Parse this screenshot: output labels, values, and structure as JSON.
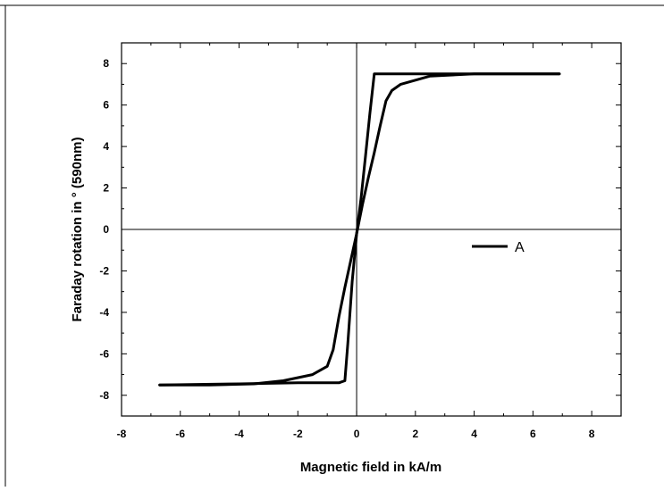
{
  "chart_data": {
    "type": "line",
    "title": "",
    "xlabel": "Magnetic field in kA/m",
    "ylabel": "Faraday rotation in ° (590nm)",
    "xlim": [
      -8,
      9
    ],
    "ylim": [
      -9,
      9
    ],
    "x_ticks": [
      "-8",
      "-6",
      "-4",
      "-2",
      "0",
      "2",
      "4",
      "6",
      "8"
    ],
    "y_ticks": [
      "-8",
      "-6",
      "-4",
      "-2",
      "0",
      "2",
      "4",
      "6",
      "8"
    ],
    "grid": false,
    "zero_lines": true,
    "legend": {
      "position": "right-center",
      "entries": [
        "A"
      ]
    },
    "series": [
      {
        "name": "A",
        "color": "#000000",
        "branches": [
          {
            "x": [
              6.9,
              4.0,
              2.5,
              1.5,
              1.2,
              1.0,
              0.8,
              0.6,
              0.4,
              0.2,
              0.0,
              -0.2,
              -0.4,
              -0.6,
              -0.8,
              -1.0,
              -1.5,
              -2.5,
              -3.5,
              -5.0,
              -6.7
            ],
            "y": [
              7.5,
              7.5,
              7.4,
              7.0,
              6.7,
              6.2,
              5.0,
              3.7,
              2.5,
              1.2,
              -0.2,
              -1.5,
              -2.8,
              -4.2,
              -5.8,
              -6.6,
              -7.0,
              -7.3,
              -7.45,
              -7.5,
              -7.5
            ]
          },
          {
            "x": [
              -6.7,
              -4.0,
              -2.0,
              -1.0,
              -0.6,
              -0.4,
              -0.3,
              -0.15,
              0.0,
              0.15,
              0.3,
              0.45,
              0.6,
              0.9,
              1.5,
              2.5,
              4.0,
              6.9
            ],
            "y": [
              -7.5,
              -7.45,
              -7.4,
              -7.4,
              -7.4,
              -7.3,
              -5.5,
              -2.5,
              -0.2,
              1.5,
              3.5,
              5.6,
              7.5,
              7.5,
              7.5,
              7.5,
              7.5,
              7.5
            ]
          }
        ]
      }
    ]
  }
}
